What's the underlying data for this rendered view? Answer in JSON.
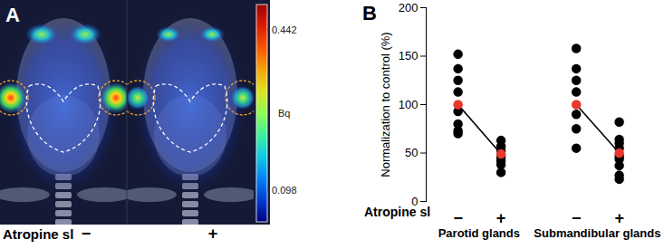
{
  "chart_data": [
    {
      "type": "image",
      "title": "A",
      "x_label": "Atropine sl",
      "categories": [
        "−",
        "+"
      ],
      "colorbar": {
        "label": "Bq",
        "range": [
          0.03,
          0.496
        ],
        "ticks": [
          0.442,
          0.098
        ]
      }
    },
    {
      "type": "scatter",
      "title": "B",
      "x_label": "Atropine sl",
      "y_label": "Normalization to control (%)",
      "categories": [
        "−",
        "+",
        "−",
        "+"
      ],
      "groups": [
        "Parotid glands",
        "Submandibular glands"
      ],
      "ylim": [
        0,
        200
      ],
      "yticks": [
        0,
        50,
        100,
        150,
        200
      ],
      "series": [
        {
          "type": "scatter",
          "color": "#000000",
          "marker": "circle",
          "values": [
            [
              152,
              137,
              125,
              113,
              93,
              80,
              73,
              70
            ],
            [
              63,
              57,
              52,
              48,
              45,
              42,
              38,
              30
            ],
            [
              158,
              137,
              125,
              113,
              90,
              75,
              55
            ],
            [
              82,
              64,
              60,
              55,
              47,
              44,
              37,
              27,
              23
            ]
          ]
        },
        {
          "type": "line",
          "color": "#000000",
          "line_style": "solid",
          "values": [
            100,
            49,
            100,
            50
          ]
        },
        {
          "type": "scatter",
          "color": "#e8392f",
          "marker": "circle",
          "values": [
            100,
            49,
            100,
            50
          ]
        }
      ]
    }
  ]
}
